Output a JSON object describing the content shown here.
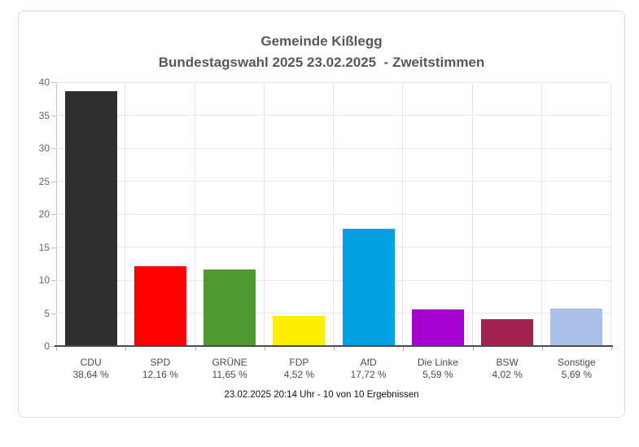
{
  "card": {
    "title_line1": "Gemeinde Kißlegg",
    "title_line2": "Bundestagswahl 2025 23.02.2025  - Zweitstimmen",
    "footer": "23.02.2025 20:14 Uhr - 10 von 10 Ergebnissen"
  },
  "chart_data": {
    "type": "bar",
    "title": "Gemeinde Kißlegg",
    "subtitle": "Bundestagswahl 2025 23.02.2025 - Zweitstimmen",
    "categories": [
      "CDU",
      "SPD",
      "GRÜNE",
      "FDP",
      "AfD",
      "Die Linke",
      "BSW",
      "Sonstige"
    ],
    "values": [
      38.64,
      12.16,
      11.65,
      4.52,
      17.72,
      5.59,
      4.02,
      5.69
    ],
    "value_labels": [
      "38,64 %",
      "12,16 %",
      "11,65 %",
      "4,52 %",
      "17,72 %",
      "5,59 %",
      "4,02 %",
      "5,69 %"
    ],
    "bar_colors": [
      "#303030",
      "#fe0000",
      "#4d9b30",
      "#ffee00",
      "#009fe1",
      "#a500cf",
      "#a32350",
      "#abc0e6"
    ],
    "xlabel": "",
    "ylabel": "",
    "ylim": [
      0,
      40
    ],
    "yticks": [
      0,
      5,
      10,
      15,
      20,
      25,
      30,
      35,
      40
    ],
    "grid": true,
    "legend_position": "none",
    "caption": "23.02.2025 20:14 Uhr - 10 von 10 Ergebnissen"
  }
}
